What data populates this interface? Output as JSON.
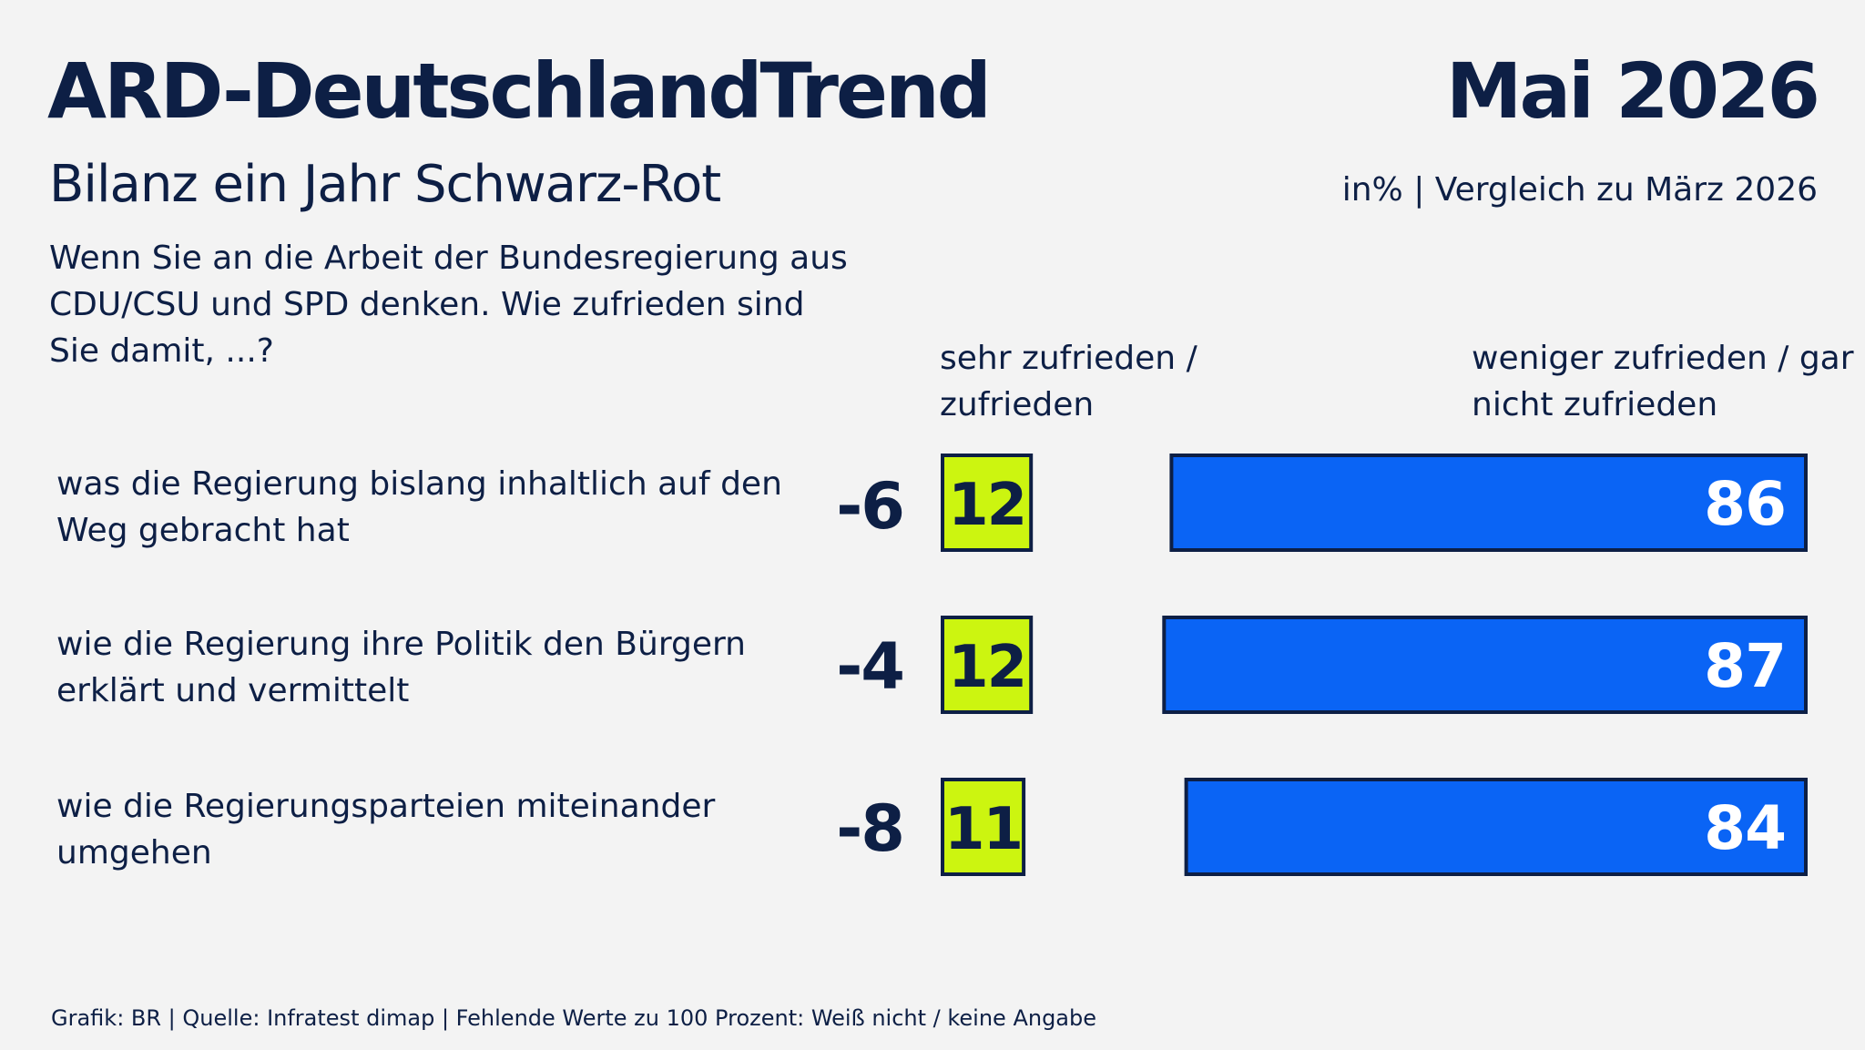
{
  "header": {
    "title": "ARD-DeutschlandTrend",
    "date": "Mai 2026",
    "subtitle": "Bilanz ein Jahr Schwarz-Rot",
    "unit_note": "in% | Vergleich zu März 2026",
    "question": "Wenn Sie an die Arbeit der Bundesregierung aus CDU/CSU und SPD denken. Wie zufrieden sind Sie damit, ...?"
  },
  "columns": {
    "positive": "sehr zufrieden / zufrieden",
    "negative": "weniger zufrieden / gar nicht zufrieden"
  },
  "colors": {
    "positive": "#ccf510",
    "negative": "#0a64f5",
    "outline": "#0d1f45",
    "text": "#0d1f45",
    "background": "#f3f3f3"
  },
  "chart_data": {
    "type": "bar",
    "orientation": "horizontal",
    "stacked": true,
    "unit": "%",
    "categories": [
      "was die Regierung bislang inhaltlich auf den Weg gebracht hat",
      "wie die Regierung ihre Politik den Bürgern erklärt und vermittelt",
      "wie die Regierungsparteien miteinander umgehen"
    ],
    "series": [
      {
        "name": "sehr zufrieden / zufrieden",
        "values": [
          12,
          12,
          11
        ],
        "changes": [
          "-6",
          "-4",
          "-8"
        ]
      },
      {
        "name": "weniger zufrieden / gar nicht zufrieden",
        "values": [
          86,
          87,
          84
        ]
      }
    ],
    "comparison": "Vergleich zu März 2026"
  },
  "footer": "Grafik: BR | Quelle: Infratest dimap | Fehlende Werte zu 100 Prozent: Weiß nicht / keine Angabe"
}
